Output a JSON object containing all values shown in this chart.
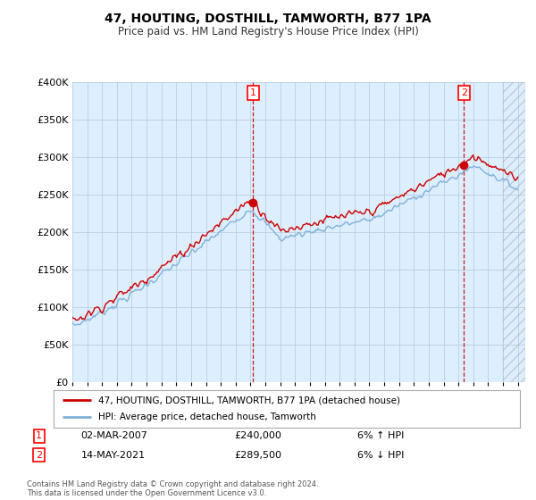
{
  "title": "47, HOUTING, DOSTHILL, TAMWORTH, B77 1PA",
  "subtitle": "Price paid vs. HM Land Registry's House Price Index (HPI)",
  "legend_line1": "47, HOUTING, DOSTHILL, TAMWORTH, B77 1PA (detached house)",
  "legend_line2": "HPI: Average price, detached house, Tamworth",
  "sale1_date": "02-MAR-2007",
  "sale1_price": "£240,000",
  "sale1_hpi": "6% ↑ HPI",
  "sale2_date": "14-MAY-2021",
  "sale2_price": "£289,500",
  "sale2_hpi": "6% ↓ HPI",
  "footer": "Contains HM Land Registry data © Crown copyright and database right 2024.\nThis data is licensed under the Open Government Licence v3.0.",
  "ylim": [
    0,
    400000
  ],
  "yticks": [
    0,
    50000,
    100000,
    150000,
    200000,
    250000,
    300000,
    350000,
    400000
  ],
  "year_start": 1995,
  "year_end": 2025,
  "hpi_color": "#7fb2d8",
  "price_color": "#cc0000",
  "vline_color": "#cc0000",
  "sale1_year": 2007.17,
  "sale2_year": 2021.37,
  "background_color": "#ffffff",
  "plot_bg_color": "#ddeeff",
  "grid_color": "#b8cfe0"
}
